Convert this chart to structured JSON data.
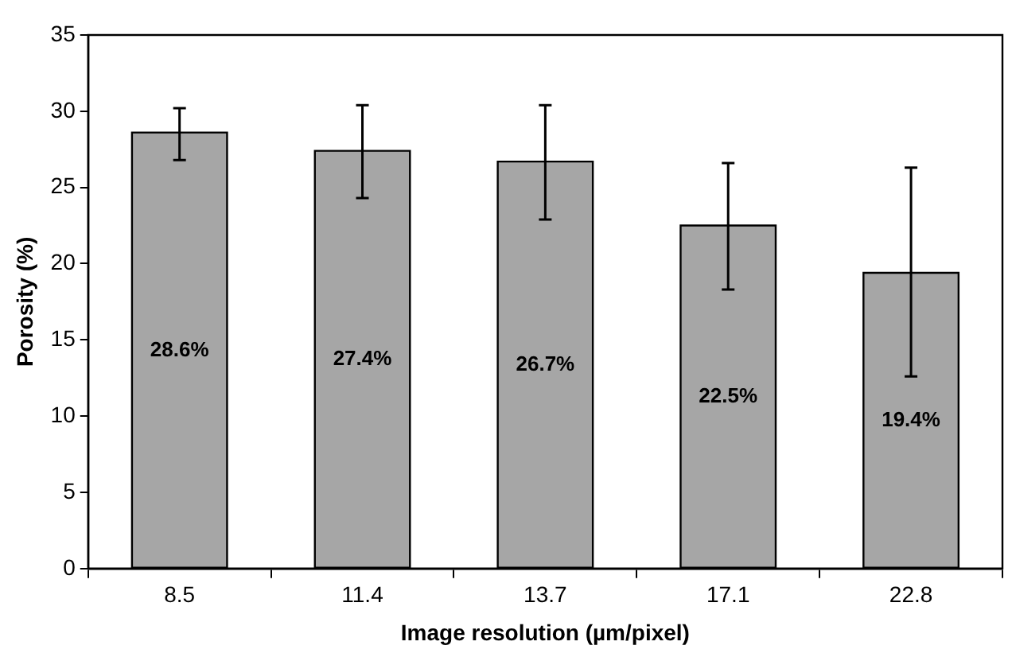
{
  "chart_data": {
    "type": "bar",
    "xlabel": "Image resolution (µm/pixel)",
    "ylabel": "Porosity (%)",
    "categories": [
      "8.5",
      "11.4",
      "13.7",
      "17.1",
      "22.8"
    ],
    "values": [
      28.6,
      27.4,
      26.7,
      22.5,
      19.4
    ],
    "value_labels": [
      "28.6%",
      "27.4%",
      "26.7%",
      "22.5%",
      "19.4%"
    ],
    "errors": [
      [
        26.8,
        30.2
      ],
      [
        24.3,
        30.4
      ],
      [
        22.9,
        30.4
      ],
      [
        18.3,
        26.6
      ],
      [
        12.6,
        26.3
      ]
    ],
    "color": "#a6a6a6",
    "ylim": [
      0,
      35
    ],
    "yticks": [
      0,
      5,
      10,
      15,
      20,
      25,
      30,
      35
    ],
    "grid": false,
    "legend": false
  }
}
